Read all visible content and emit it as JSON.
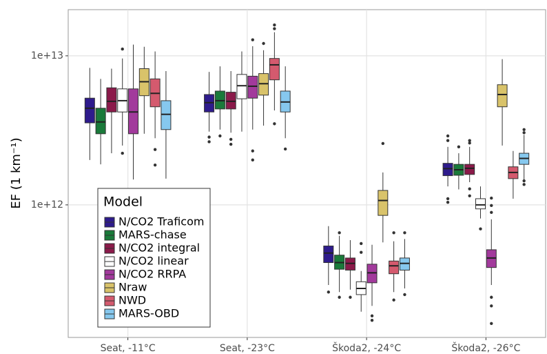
{
  "chart_data": {
    "type": "box",
    "y_label": "EF (1 km⁻¹)",
    "legend_title": "Model",
    "categories": [
      "Seat, -11°C",
      "Seat, -23°C",
      "Škoda2, -24°C",
      "Škoda2, -26°C"
    ],
    "log_y": true,
    "grid": true,
    "legend": "bottom-left",
    "ylim": [
      129000000000.0,
      20400000000000.0
    ],
    "yticks": [
      {
        "value": 1000000000000.0,
        "label": "1e+12"
      },
      {
        "value": 10000000000000.0,
        "label": "1e+13"
      }
    ],
    "series": [
      {
        "name": "N/CO2 Traficom",
        "color": "#2e1b8c",
        "values": [
          {
            "min": 2000000000000.0,
            "q1": 3550000000000.0,
            "median": 4450000000000.0,
            "q3": 5200000000000.0,
            "max": 8300000000000.0,
            "outliers": []
          },
          {
            "min": 3100000000000.0,
            "q1": 4200000000000.0,
            "median": 4850000000000.0,
            "q3": 5500000000000.0,
            "max": 7800000000000.0,
            "outliers": [
              2850000000000.0,
              2650000000000.0
            ]
          },
          {
            "min": 290000000000.0,
            "q1": 410000000000.0,
            "median": 475000000000.0,
            "q3": 530000000000.0,
            "max": 720000000000.0,
            "outliers": [
              260000000000.0
            ]
          },
          {
            "min": 1330000000000.0,
            "q1": 1570000000000.0,
            "median": 1750000000000.0,
            "q3": 1900000000000.0,
            "max": 2450000000000.0,
            "outliers": [
              2900000000000.0,
              2700000000000.0,
              1100000000000.0,
              1040000000000.0
            ]
          }
        ]
      },
      {
        "name": "MARS-chase",
        "color": "#1a7a3a",
        "values": [
          {
            "min": 1870000000000.0,
            "q1": 3000000000000.0,
            "median": 3600000000000.0,
            "q3": 4450000000000.0,
            "max": 7000000000000.0,
            "outliers": []
          },
          {
            "min": 3200000000000.0,
            "q1": 4400000000000.0,
            "median": 5000000000000.0,
            "q3": 5800000000000.0,
            "max": 8500000000000.0,
            "outliers": [
              2900000000000.0
            ]
          },
          {
            "min": 260000000000.0,
            "q1": 370000000000.0,
            "median": 410000000000.0,
            "q3": 460000000000.0,
            "max": 620000000000.0,
            "outliers": [
              650000000000.0,
              240000000000.0
            ]
          },
          {
            "min": 1270000000000.0,
            "q1": 1580000000000.0,
            "median": 1720000000000.0,
            "q3": 1870000000000.0,
            "max": 2220000000000.0,
            "outliers": [
              2450000000000.0
            ]
          }
        ]
      },
      {
        "name": "N/CO2 integral",
        "color": "#8b1a4a",
        "values": [
          {
            "min": 2220000000000.0,
            "q1": 4200000000000.0,
            "median": 4950000000000.0,
            "q3": 6100000000000.0,
            "max": 8200000000000.0,
            "outliers": []
          },
          {
            "min": 3050000000000.0,
            "q1": 4400000000000.0,
            "median": 4950000000000.0,
            "q3": 5700000000000.0,
            "max": 7900000000000.0,
            "outliers": [
              2750000000000.0,
              2550000000000.0
            ]
          },
          {
            "min": 270000000000.0,
            "q1": 365000000000.0,
            "median": 405000000000.0,
            "q3": 440000000000.0,
            "max": 580000000000.0,
            "outliers": [
              240000000000.0
            ]
          },
          {
            "min": 1420000000000.0,
            "q1": 1600000000000.0,
            "median": 1760000000000.0,
            "q3": 1870000000000.0,
            "max": 2450000000000.0,
            "outliers": [
              2700000000000.0,
              2600000000000.0,
              1280000000000.0,
              1150000000000.0
            ]
          }
        ]
      },
      {
        "name": "N/CO2 linear",
        "color": "#ffffff",
        "values": [
          {
            "min": 2500000000000.0,
            "q1": 4200000000000.0,
            "median": 5000000000000.0,
            "q3": 6000000000000.0,
            "max": 9600000000000.0,
            "outliers": [
              11100000000000.0,
              2220000000000.0
            ]
          },
          {
            "min": 3100000000000.0,
            "q1": 5150000000000.0,
            "median": 6300000000000.0,
            "q3": 7500000000000.0,
            "max": 10700000000000.0,
            "outliers": []
          },
          {
            "min": 192000000000.0,
            "q1": 250000000000.0,
            "median": 275000000000.0,
            "q3": 305000000000.0,
            "max": 360000000000.0,
            "outliers": [
              550000000000.0,
              480000000000.0
            ]
          },
          {
            "min": 810000000000.0,
            "q1": 940000000000.0,
            "median": 1000000000000.0,
            "q3": 1100000000000.0,
            "max": 1330000000000.0,
            "outliers": [
              690000000000.0
            ]
          }
        ]
      },
      {
        "name": "N/CO2 RRPA",
        "color": "#a23a9c",
        "values": [
          {
            "min": 1480000000000.0,
            "q1": 3000000000000.0,
            "median": 4200000000000.0,
            "q3": 6000000000000.0,
            "max": 11900000000000.0,
            "outliers": []
          },
          {
            "min": 3200000000000.0,
            "q1": 5200000000000.0,
            "median": 6250000000000.0,
            "q3": 7300000000000.0,
            "max": 11600000000000.0,
            "outliers": [
              12800000000000.0,
              2300000000000.0,
              2000000000000.0
            ]
          },
          {
            "min": 210000000000.0,
            "q1": 300000000000.0,
            "median": 350000000000.0,
            "q3": 400000000000.0,
            "max": 540000000000.0,
            "outliers": [
              180000000000.0,
              168000000000.0
            ]
          },
          {
            "min": 290000000000.0,
            "q1": 380000000000.0,
            "median": 440000000000.0,
            "q3": 500000000000.0,
            "max": 800000000000.0,
            "outliers": [
              1110000000000.0,
              990000000000.0,
              890000000000.0,
              240000000000.0,
              210000000000.0,
              160000000000.0
            ]
          }
        ]
      },
      {
        "name": "Nraw",
        "color": "#d9c36a",
        "values": [
          {
            "min": 3000000000000.0,
            "q1": 5400000000000.0,
            "median": 6700000000000.0,
            "q3": 8200000000000.0,
            "max": 11500000000000.0,
            "outliers": []
          },
          {
            "min": 3400000000000.0,
            "q1": 5450000000000.0,
            "median": 6500000000000.0,
            "q3": 7600000000000.0,
            "max": 10900000000000.0,
            "outliers": [
              12100000000000.0
            ]
          },
          {
            "min": 560000000000.0,
            "q1": 850000000000.0,
            "median": 1070000000000.0,
            "q3": 1250000000000.0,
            "max": 1650000000000.0,
            "outliers": [
              2580000000000.0
            ]
          },
          {
            "min": 2500000000000.0,
            "q1": 4550000000000.0,
            "median": 5500000000000.0,
            "q3": 6400000000000.0,
            "max": 9500000000000.0,
            "outliers": []
          }
        ]
      },
      {
        "name": "NWD",
        "color": "#d45a6e",
        "values": [
          {
            "min": 2800000000000.0,
            "q1": 4550000000000.0,
            "median": 5600000000000.0,
            "q3": 7000000000000.0,
            "max": 10700000000000.0,
            "outliers": [
              2350000000000.0,
              1850000000000.0
            ]
          },
          {
            "min": 4300000000000.0,
            "q1": 6900000000000.0,
            "median": 8700000000000.0,
            "q3": 9600000000000.0,
            "max": 14400000000000.0,
            "outliers": [
              16100000000000.0,
              15200000000000.0,
              3500000000000.0
            ]
          },
          {
            "min": 260000000000.0,
            "q1": 345000000000.0,
            "median": 390000000000.0,
            "q3": 420000000000.0,
            "max": 570000000000.0,
            "outliers": [
              650000000000.0,
              230000000000.0
            ]
          },
          {
            "min": 1100000000000.0,
            "q1": 1500000000000.0,
            "median": 1650000000000.0,
            "q3": 1800000000000.0,
            "max": 2300000000000.0,
            "outliers": []
          }
        ]
      },
      {
        "name": "MARS-OBD",
        "color": "#86c8ee",
        "values": [
          {
            "min": 1500000000000.0,
            "q1": 3200000000000.0,
            "median": 4050000000000.0,
            "q3": 5000000000000.0,
            "max": 7900000000000.0,
            "outliers": []
          },
          {
            "min": 2800000000000.0,
            "q1": 4200000000000.0,
            "median": 4900000000000.0,
            "q3": 5800000000000.0,
            "max": 8500000000000.0,
            "outliers": [
              2370000000000.0
            ]
          },
          {
            "min": 275000000000.0,
            "q1": 365000000000.0,
            "median": 405000000000.0,
            "q3": 440000000000.0,
            "max": 590000000000.0,
            "outliers": [
              650000000000.0,
              250000000000.0
            ]
          },
          {
            "min": 1480000000000.0,
            "q1": 1870000000000.0,
            "median": 2050000000000.0,
            "q3": 2220000000000.0,
            "max": 2950000000000.0,
            "outliers": [
              3200000000000.0,
              3050000000000.0,
              1450000000000.0,
              1370000000000.0
            ]
          }
        ]
      }
    ]
  }
}
